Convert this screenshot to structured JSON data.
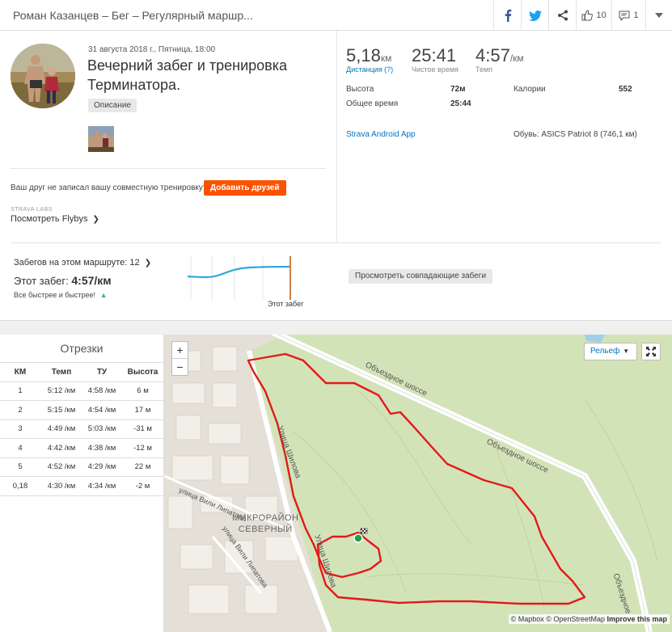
{
  "header": {
    "title": "Роман Казанцев – Бег – Регулярный маршр...",
    "kudos_count": "10",
    "comments_count": "1",
    "icons": [
      "facebook-icon",
      "twitter-icon",
      "share-icon",
      "thumbs-up-icon",
      "comment-icon",
      "chevron-down-icon"
    ]
  },
  "activity": {
    "date": "31 августа 2018 г., Пятница, 18:00",
    "title": "Вечерний забег и тренировка Терминатора.",
    "description_button": "Описание"
  },
  "stats": {
    "distance_value": "5,18",
    "distance_unit": "км",
    "distance_label": "Дистанция (?)",
    "moving_time_value": "25:41",
    "moving_time_label": "Чистое время",
    "pace_value": "4:57",
    "pace_unit": "/км",
    "pace_label": "Темп",
    "elevation_label": "Высота",
    "elevation_value": "72м",
    "calories_label": "Калории",
    "calories_value": "552",
    "elapsed_label": "Общее время",
    "elapsed_value": "25:44",
    "device": "Strava Android App",
    "shoes": "Обувь: ASICS Patriot 8 (746,1 км)"
  },
  "friends": {
    "text": "Ваш друг не записал вашу совместную тренировку?",
    "button": "Добавить друзей",
    "labs": "STRAVA LABS",
    "flybys": "Посмотреть Flybys"
  },
  "route": {
    "count_label": "Забегов на этом маршруте: 12",
    "this_run_label": "Этот забег:",
    "this_run_value": "4:57/км",
    "faster": "Все быстрее и быстрее!",
    "spark_label": "Этот забег",
    "match_button": "Просмотреть совпадающие забеги"
  },
  "splits": {
    "title": "Отрезки",
    "headers": [
      "КМ",
      "Темп",
      "ТУ",
      "Высота"
    ],
    "rows": [
      [
        "1",
        "5:12 /км",
        "4:58 /км",
        "6 м"
      ],
      [
        "2",
        "5:15 /км",
        "4:54 /км",
        "17 м"
      ],
      [
        "3",
        "4:49 /км",
        "5:03 /км",
        "-31 м"
      ],
      [
        "4",
        "4:42 /км",
        "4:38 /км",
        "-12 м"
      ],
      [
        "5",
        "4:52 /км",
        "4:29 /км",
        "22 м"
      ],
      [
        "0,18",
        "4:30 /км",
        "4:34 /км",
        "-2 м"
      ]
    ]
  },
  "map": {
    "zoom_in": "+",
    "zoom_out": "−",
    "layer_button": "Рельеф",
    "attribution_mapbox": "© Mapbox",
    "attribution_osm": "© OpenStreetMap",
    "attribution_improve": "Improve this map",
    "labels": {
      "road1": "Объездное шоссе",
      "road2": "Объездное шоссе",
      "street1": "Улица Шилова",
      "street2": "улица Вили Липатова",
      "street3": "улица Вили Липатова",
      "street4": "Улица Шилова",
      "district_line1": "МИКРОРАЙОН",
      "district_line2": "СЕВЕРНЫЙ",
      "road_v": "Объездное"
    }
  },
  "colors": {
    "accent": "#fc5200",
    "link": "#0074be",
    "route": "#e3191b",
    "spark": "#2fa8dc"
  }
}
